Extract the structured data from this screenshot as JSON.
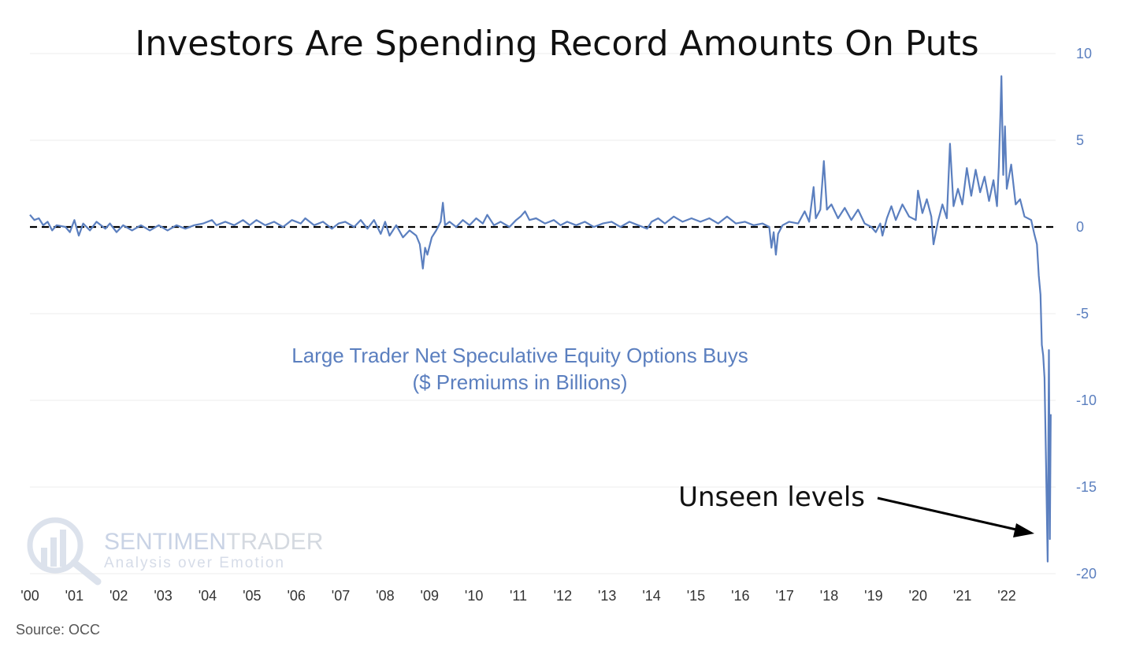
{
  "chart_data": {
    "type": "line",
    "title": "Investors Are Spending Record Amounts On Puts",
    "series_label_line1": "Large Trader Net Speculative Equity Options Buys",
    "series_label_line2": "($ Premiums in Billions)",
    "annotation": "Unseen levels",
    "source": "Source: OCC",
    "watermark": {
      "brand_a": "SENTIMEN",
      "brand_b": "TRADER",
      "tagline": "Analysis over Emotion"
    },
    "xlim": [
      2000,
      2023.1
    ],
    "ylim": [
      -20,
      10
    ],
    "y_ticks": [
      10,
      5,
      0,
      -5,
      -10,
      -15,
      -20
    ],
    "x_ticks": [
      {
        "value": 2000,
        "label": "'00"
      },
      {
        "value": 2001,
        "label": "'01"
      },
      {
        "value": 2002,
        "label": "'02"
      },
      {
        "value": 2003,
        "label": "'03"
      },
      {
        "value": 2004,
        "label": "'04"
      },
      {
        "value": 2005,
        "label": "'05"
      },
      {
        "value": 2006,
        "label": "'06"
      },
      {
        "value": 2007,
        "label": "'07"
      },
      {
        "value": 2008,
        "label": "'08"
      },
      {
        "value": 2009,
        "label": "'09"
      },
      {
        "value": 2010,
        "label": "'10"
      },
      {
        "value": 2011,
        "label": "'11"
      },
      {
        "value": 2012,
        "label": "'12"
      },
      {
        "value": 2013,
        "label": "'13"
      },
      {
        "value": 2014,
        "label": "'14"
      },
      {
        "value": 2015,
        "label": "'15"
      },
      {
        "value": 2016,
        "label": "'16"
      },
      {
        "value": 2017,
        "label": "'17"
      },
      {
        "value": 2018,
        "label": "'18"
      },
      {
        "value": 2019,
        "label": "'19"
      },
      {
        "value": 2020,
        "label": "'20"
      },
      {
        "value": 2021,
        "label": "'21"
      },
      {
        "value": 2022,
        "label": "'22"
      }
    ],
    "zero_line": 0,
    "colors": {
      "series": "#5b7fbf",
      "ticks_y": "#5b7fbf",
      "grid": "#ececec",
      "zero_line": "#000000"
    },
    "series": [
      {
        "name": "Large Trader Net Speculative Equity Options Buys",
        "points": [
          [
            2000.0,
            0.7
          ],
          [
            2000.1,
            0.4
          ],
          [
            2000.2,
            0.5
          ],
          [
            2000.3,
            0.1
          ],
          [
            2000.4,
            0.3
          ],
          [
            2000.5,
            -0.2
          ],
          [
            2000.6,
            0.1
          ],
          [
            2000.8,
            0.0
          ],
          [
            2000.9,
            -0.3
          ],
          [
            2001.0,
            0.4
          ],
          [
            2001.1,
            -0.5
          ],
          [
            2001.2,
            0.2
          ],
          [
            2001.35,
            -0.2
          ],
          [
            2001.5,
            0.3
          ],
          [
            2001.7,
            -0.1
          ],
          [
            2001.8,
            0.2
          ],
          [
            2001.95,
            -0.3
          ],
          [
            2002.1,
            0.1
          ],
          [
            2002.3,
            -0.2
          ],
          [
            2002.5,
            0.1
          ],
          [
            2002.7,
            -0.2
          ],
          [
            2002.9,
            0.1
          ],
          [
            2003.1,
            -0.2
          ],
          [
            2003.3,
            0.1
          ],
          [
            2003.5,
            -0.1
          ],
          [
            2003.7,
            0.1
          ],
          [
            2003.9,
            0.2
          ],
          [
            2004.1,
            0.4
          ],
          [
            2004.2,
            0.1
          ],
          [
            2004.4,
            0.3
          ],
          [
            2004.6,
            0.1
          ],
          [
            2004.8,
            0.4
          ],
          [
            2004.95,
            0.1
          ],
          [
            2005.1,
            0.4
          ],
          [
            2005.3,
            0.1
          ],
          [
            2005.5,
            0.3
          ],
          [
            2005.7,
            0.0
          ],
          [
            2005.9,
            0.4
          ],
          [
            2006.1,
            0.2
          ],
          [
            2006.2,
            0.5
          ],
          [
            2006.4,
            0.1
          ],
          [
            2006.6,
            0.3
          ],
          [
            2006.8,
            -0.1
          ],
          [
            2006.95,
            0.2
          ],
          [
            2007.1,
            0.3
          ],
          [
            2007.3,
            0.0
          ],
          [
            2007.45,
            0.4
          ],
          [
            2007.6,
            -0.1
          ],
          [
            2007.75,
            0.4
          ],
          [
            2007.9,
            -0.4
          ],
          [
            2008.0,
            0.3
          ],
          [
            2008.1,
            -0.5
          ],
          [
            2008.25,
            0.1
          ],
          [
            2008.4,
            -0.6
          ],
          [
            2008.55,
            -0.2
          ],
          [
            2008.7,
            -0.5
          ],
          [
            2008.78,
            -1.0
          ],
          [
            2008.85,
            -2.4
          ],
          [
            2008.9,
            -1.2
          ],
          [
            2008.95,
            -1.6
          ],
          [
            2009.05,
            -0.6
          ],
          [
            2009.15,
            -0.2
          ],
          [
            2009.25,
            0.3
          ],
          [
            2009.3,
            1.4
          ],
          [
            2009.35,
            0.1
          ],
          [
            2009.45,
            0.3
          ],
          [
            2009.6,
            0.0
          ],
          [
            2009.75,
            0.4
          ],
          [
            2009.9,
            0.1
          ],
          [
            2010.05,
            0.5
          ],
          [
            2010.2,
            0.2
          ],
          [
            2010.3,
            0.7
          ],
          [
            2010.45,
            0.1
          ],
          [
            2010.6,
            0.3
          ],
          [
            2010.8,
            0.0
          ],
          [
            2010.95,
            0.4
          ],
          [
            2011.05,
            0.6
          ],
          [
            2011.15,
            0.9
          ],
          [
            2011.25,
            0.4
          ],
          [
            2011.4,
            0.5
          ],
          [
            2011.6,
            0.2
          ],
          [
            2011.8,
            0.4
          ],
          [
            2011.95,
            0.1
          ],
          [
            2012.1,
            0.3
          ],
          [
            2012.3,
            0.1
          ],
          [
            2012.5,
            0.3
          ],
          [
            2012.7,
            0.0
          ],
          [
            2012.9,
            0.2
          ],
          [
            2013.1,
            0.3
          ],
          [
            2013.3,
            0.0
          ],
          [
            2013.5,
            0.3
          ],
          [
            2013.7,
            0.1
          ],
          [
            2013.9,
            -0.1
          ],
          [
            2014.0,
            0.3
          ],
          [
            2014.15,
            0.5
          ],
          [
            2014.3,
            0.2
          ],
          [
            2014.5,
            0.6
          ],
          [
            2014.7,
            0.3
          ],
          [
            2014.9,
            0.5
          ],
          [
            2015.1,
            0.3
          ],
          [
            2015.3,
            0.5
          ],
          [
            2015.5,
            0.2
          ],
          [
            2015.7,
            0.6
          ],
          [
            2015.9,
            0.2
          ],
          [
            2016.1,
            0.3
          ],
          [
            2016.3,
            0.1
          ],
          [
            2016.5,
            0.2
          ],
          [
            2016.65,
            0.0
          ],
          [
            2016.7,
            -1.2
          ],
          [
            2016.75,
            -0.3
          ],
          [
            2016.8,
            -1.6
          ],
          [
            2016.85,
            -0.4
          ],
          [
            2016.95,
            0.1
          ],
          [
            2017.1,
            0.3
          ],
          [
            2017.3,
            0.2
          ],
          [
            2017.45,
            0.9
          ],
          [
            2017.55,
            0.3
          ],
          [
            2017.65,
            2.3
          ],
          [
            2017.7,
            0.5
          ],
          [
            2017.8,
            1.0
          ],
          [
            2017.88,
            3.8
          ],
          [
            2017.95,
            1.0
          ],
          [
            2018.05,
            1.3
          ],
          [
            2018.2,
            0.5
          ],
          [
            2018.35,
            1.1
          ],
          [
            2018.5,
            0.4
          ],
          [
            2018.65,
            1.0
          ],
          [
            2018.8,
            0.2
          ],
          [
            2018.95,
            0.0
          ],
          [
            2019.05,
            -0.3
          ],
          [
            2019.15,
            0.2
          ],
          [
            2019.2,
            -0.5
          ],
          [
            2019.3,
            0.5
          ],
          [
            2019.4,
            1.2
          ],
          [
            2019.5,
            0.4
          ],
          [
            2019.65,
            1.3
          ],
          [
            2019.8,
            0.6
          ],
          [
            2019.95,
            0.4
          ],
          [
            2020.0,
            2.1
          ],
          [
            2020.1,
            0.8
          ],
          [
            2020.2,
            1.6
          ],
          [
            2020.3,
            0.6
          ],
          [
            2020.35,
            -1.0
          ],
          [
            2020.45,
            0.3
          ],
          [
            2020.55,
            1.3
          ],
          [
            2020.65,
            0.5
          ],
          [
            2020.72,
            4.8
          ],
          [
            2020.8,
            1.2
          ],
          [
            2020.9,
            2.2
          ],
          [
            2021.0,
            1.3
          ],
          [
            2021.1,
            3.4
          ],
          [
            2021.2,
            1.8
          ],
          [
            2021.3,
            3.3
          ],
          [
            2021.4,
            2.0
          ],
          [
            2021.5,
            2.9
          ],
          [
            2021.6,
            1.5
          ],
          [
            2021.7,
            2.7
          ],
          [
            2021.78,
            1.2
          ],
          [
            2021.82,
            3.5
          ],
          [
            2021.86,
            6.8
          ],
          [
            2021.88,
            8.7
          ],
          [
            2021.92,
            3.0
          ],
          [
            2021.96,
            5.8
          ],
          [
            2022.0,
            2.2
          ],
          [
            2022.1,
            3.6
          ],
          [
            2022.2,
            1.3
          ],
          [
            2022.3,
            1.6
          ],
          [
            2022.4,
            0.6
          ],
          [
            2022.55,
            0.4
          ],
          [
            2022.62,
            -0.4
          ],
          [
            2022.68,
            -1.0
          ],
          [
            2022.72,
            -2.8
          ],
          [
            2022.76,
            -3.9
          ],
          [
            2022.79,
            -6.8
          ],
          [
            2022.82,
            -7.4
          ],
          [
            2022.85,
            -8.7
          ],
          [
            2022.88,
            -13.0
          ],
          [
            2022.9,
            -16.0
          ],
          [
            2022.92,
            -19.3
          ],
          [
            2022.95,
            -7.1
          ],
          [
            2022.97,
            -18.0
          ],
          [
            2022.99,
            -10.8
          ]
        ]
      }
    ]
  }
}
